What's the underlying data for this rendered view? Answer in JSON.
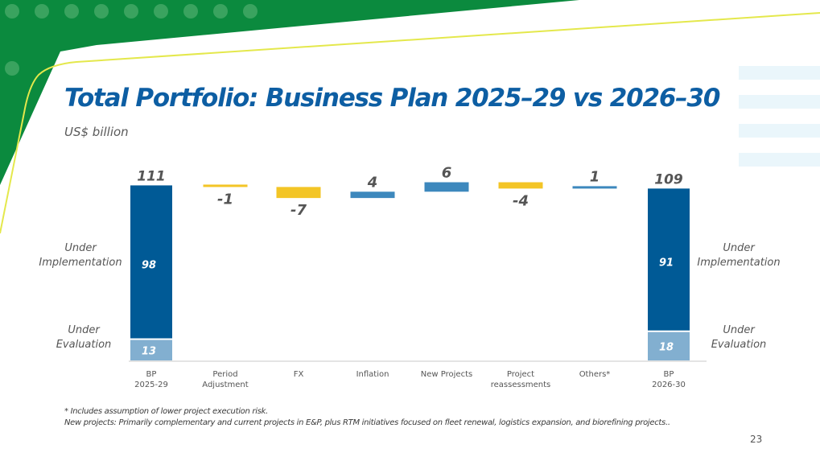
{
  "title": "Total Portfolio: Business Plan 2025–29 vs 2026–30",
  "subtitle": "US$ billion",
  "footnotes": [
    "* Includes assumption of lower project execution risk.",
    "New projects: Primarily complementary and current  projects in E&P, plus RTM  initiatives focused on fleet renewal, logistics expansion, and biorefining projects.."
  ],
  "page_number": "23",
  "colors": {
    "brand_green": "#0b8a3e",
    "accent_yellow": "#f3c526",
    "line_yellow": "#e4e84c",
    "dark_blue": "#005a96",
    "mid_blue": "#3d88bd",
    "light_blue": "#82afd0",
    "label_text": "#555555"
  },
  "chart_data": {
    "type": "waterfall",
    "title": "Total Portfolio: Business Plan 2025–29 vs 2026–30",
    "ylabel": "US$ billion",
    "ylim": [
      0,
      111
    ],
    "categories": [
      "BP\n2025-29",
      "Period\nAdjustment",
      "FX",
      "Inflation",
      "New Projects",
      "Project\nreassessments",
      "Others*",
      "BP\n2026-30"
    ],
    "totals": [
      {
        "category": "BP\n2025-29",
        "value": 111,
        "label": "111",
        "under_implementation": 98,
        "under_evaluation": 13
      },
      {
        "category": "BP\n2026-30",
        "value": 109,
        "label": "109",
        "under_implementation": 91,
        "under_evaluation": 18
      }
    ],
    "changes": [
      {
        "category": "Period\nAdjustment",
        "value": -1,
        "label": "-1"
      },
      {
        "category": "FX",
        "value": -7,
        "label": "-7"
      },
      {
        "category": "Inflation",
        "value": 4,
        "label": "4"
      },
      {
        "category": "New Projects",
        "value": 6,
        "label": "6"
      },
      {
        "category": "Project\nreassessments",
        "value": -4,
        "label": "-4"
      },
      {
        "category": "Others*",
        "value": 1,
        "label": "1"
      }
    ],
    "segment_labels": {
      "implementation": "Under\nImplementation",
      "evaluation": "Under\nEvaluation"
    }
  }
}
